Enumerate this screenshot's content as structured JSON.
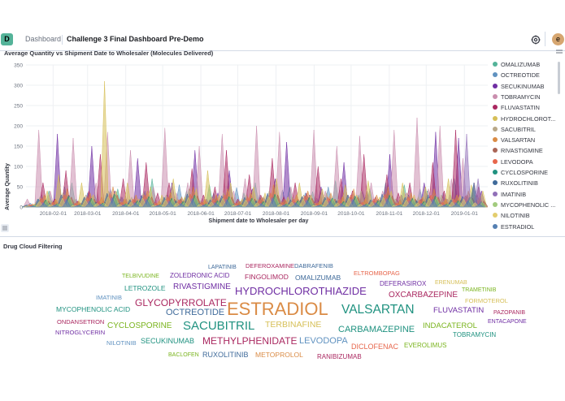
{
  "header": {
    "logo_letter": "D",
    "breadcrumb_root": "Dashboard",
    "breadcrumb_current": "Challenge 3 Final Dashboard Pre-Demo",
    "avatar_letter": "e"
  },
  "panel1": {
    "title": "Average Quantity vs Shipment Date to Wholesaler (Molecules Delivered)"
  },
  "panel2": {
    "title": "Drug Cloud Filtering"
  },
  "chart_data": {
    "type": "area",
    "title": "Average Quantity vs Shipment Date to Wholesaler (Molecules Delivered)",
    "xlabel": "Shipment date to Wholesaler per day",
    "ylabel": "Average Quantity",
    "ylim": [
      0,
      350
    ],
    "yticks": [
      0,
      50,
      100,
      150,
      200,
      250,
      300,
      350
    ],
    "xticks": [
      "2018-02-01",
      "2018-03-01",
      "2018-04-01",
      "2018-05-01",
      "2018-06-01",
      "2018-07-01",
      "2018-08-01",
      "2018-09-01",
      "2018-10-01",
      "2018-11-01",
      "2018-12-01",
      "2019-01-01"
    ],
    "x_range": [
      "2018-01-10",
      "2019-01-20"
    ],
    "grid": true,
    "legend_position": "right",
    "series": [
      {
        "name": "OMALIZUMAB",
        "color": "#54b399",
        "values": [
          5,
          20,
          40,
          10,
          60,
          15,
          30,
          8,
          45,
          20,
          10,
          70,
          25,
          12,
          40,
          18,
          55,
          22,
          9,
          35,
          60,
          15,
          28,
          50,
          12,
          38,
          20,
          65,
          14,
          30,
          45,
          10,
          25,
          55,
          18,
          40,
          12,
          30,
          22,
          50
        ]
      },
      {
        "name": "OCTREOTIDE",
        "color": "#6092c0",
        "values": [
          10,
          30,
          15,
          50,
          20,
          35,
          12,
          45,
          25,
          18,
          40,
          8,
          30,
          55,
          20,
          12,
          35,
          25,
          48,
          15,
          30,
          20,
          42,
          10,
          35,
          22,
          50,
          15,
          28,
          40,
          12,
          60,
          18,
          30,
          45,
          20,
          35,
          70,
          25,
          30
        ]
      },
      {
        "name": "SECUKINUMAB",
        "color": "#6f2ea3",
        "values": [
          2,
          8,
          180,
          30,
          10,
          150,
          15,
          40,
          20,
          120,
          25,
          10,
          60,
          15,
          140,
          20,
          35,
          90,
          15,
          45,
          25,
          70,
          160,
          20,
          30,
          50,
          15,
          110,
          25,
          40,
          20,
          130,
          30,
          15,
          60,
          185,
          20,
          170,
          25,
          40
        ]
      },
      {
        "name": "TOBRAMYCIN",
        "color": "#ca8eae",
        "values": [
          20,
          190,
          40,
          30,
          170,
          25,
          60,
          185,
          20,
          140,
          30,
          50,
          195,
          35,
          60,
          150,
          25,
          180,
          40,
          70,
          200,
          30,
          185,
          50,
          25,
          190,
          40,
          150,
          30,
          175,
          60,
          40,
          190,
          35,
          220,
          45,
          200,
          70,
          120,
          60
        ]
      },
      {
        "name": "FLUVASTATIN",
        "color": "#aa2860",
        "values": [
          5,
          60,
          20,
          90,
          15,
          40,
          130,
          25,
          70,
          20,
          110,
          35,
          60,
          20,
          95,
          30,
          50,
          140,
          20,
          80,
          30,
          120,
          25,
          60,
          35,
          100,
          20,
          70,
          40,
          130,
          25,
          80,
          35,
          60,
          20,
          110,
          40,
          190,
          30,
          50
        ]
      },
      {
        "name": "HYDROCHLOROTHIAZIDE",
        "color": "#d6bf57",
        "values": [
          10,
          40,
          80,
          20,
          60,
          30,
          310,
          40,
          60,
          20,
          50,
          30,
          70,
          25,
          45,
          90,
          30,
          60,
          20,
          50,
          35,
          70,
          25,
          60,
          30,
          45,
          20,
          55,
          30,
          65,
          25,
          40,
          60,
          30,
          50,
          25,
          70,
          30,
          55,
          40
        ]
      },
      {
        "name": "SACUBITRIL",
        "color": "#b9a888",
        "values": [
          5,
          25,
          15,
          35,
          20,
          30,
          10,
          40,
          15,
          25,
          35,
          10,
          30,
          20,
          45,
          15,
          25,
          35,
          10,
          30,
          20,
          40,
          15,
          25,
          30,
          10,
          35,
          20,
          25,
          40,
          15,
          30,
          20,
          35,
          25,
          15,
          30,
          20,
          25,
          30
        ]
      },
      {
        "name": "VALSARTAN",
        "color": "#da8b45",
        "values": [
          8,
          30,
          20,
          45,
          15,
          35,
          25,
          50,
          20,
          30,
          40,
          15,
          35,
          25,
          50,
          20,
          30,
          45,
          15,
          35,
          25,
          55,
          20,
          30,
          40,
          15,
          35,
          25,
          45,
          20,
          30,
          50,
          15,
          35,
          25,
          45,
          20,
          30,
          40,
          25
        ]
      },
      {
        "name": "RIVASTIGMINE",
        "color": "#aa6556",
        "values": [
          3,
          15,
          10,
          25,
          8,
          20,
          12,
          30,
          10,
          18,
          25,
          8,
          20,
          15,
          28,
          10,
          18,
          25,
          8,
          20,
          15,
          30,
          10,
          18,
          22,
          8,
          20,
          15,
          25,
          10,
          18,
          28,
          8,
          20,
          15,
          25,
          10,
          18,
          22,
          15
        ]
      },
      {
        "name": "LEVODOPA",
        "color": "#e7664c",
        "values": [
          6,
          22,
          12,
          30,
          10,
          25,
          15,
          35,
          12,
          20,
          30,
          10,
          25,
          18,
          32,
          12,
          20,
          30,
          10,
          25,
          18,
          35,
          12,
          20,
          28,
          10,
          25,
          18,
          30,
          12,
          20,
          32,
          10,
          25,
          18,
          30,
          12,
          20,
          28,
          18
        ]
      },
      {
        "name": "CYCLOSPORINE",
        "color": "#209280",
        "values": [
          4,
          18,
          8,
          28,
          6,
          22,
          10,
          32,
          8,
          16,
          26,
          6,
          22,
          14,
          30,
          8,
          16,
          26,
          6,
          22,
          14,
          32,
          8,
          16,
          24,
          6,
          22,
          14,
          28,
          8,
          16,
          30,
          6,
          22,
          14,
          28,
          8,
          16,
          24,
          14
        ]
      },
      {
        "name": "RUXOLITINIB",
        "color": "#3f6a9a",
        "values": [
          5,
          20,
          10,
          30,
          8,
          24,
          12,
          34,
          10,
          18,
          28,
          8,
          24,
          16,
          32,
          10,
          18,
          28,
          8,
          24,
          16,
          34,
          10,
          18,
          26,
          8,
          24,
          16,
          30,
          10,
          18,
          32,
          8,
          24,
          16,
          30,
          10,
          18,
          26,
          60
        ]
      },
      {
        "name": "IMATINIB",
        "color": "#9170b8",
        "values": [
          2,
          12,
          6,
          20,
          4,
          16,
          8,
          24,
          6,
          12,
          20,
          4,
          16,
          10,
          22,
          6,
          12,
          20,
          4,
          16,
          10,
          24,
          6,
          12,
          18,
          4,
          16,
          10,
          20,
          6,
          12,
          22,
          4,
          16,
          10,
          20,
          6,
          12,
          180,
          70
        ]
      },
      {
        "name": "MYCOPHENOLIC ACID",
        "color": "#a2cb7e",
        "values": [
          4,
          16,
          8,
          24,
          6,
          20,
          10,
          28,
          8,
          14,
          24,
          6,
          20,
          12,
          26,
          8,
          14,
          24,
          6,
          20,
          12,
          28,
          8,
          14,
          22,
          6,
          20,
          12,
          24,
          8,
          14,
          26,
          6,
          20,
          12,
          24,
          8,
          14,
          22,
          12
        ]
      },
      {
        "name": "NILOTINIB",
        "color": "#e3cd6e",
        "values": [
          3,
          14,
          7,
          22,
          5,
          18,
          9,
          26,
          7,
          13,
          22,
          5,
          18,
          11,
          24,
          7,
          13,
          22,
          5,
          18,
          11,
          26,
          7,
          13,
          20,
          5,
          18,
          11,
          22,
          7,
          13,
          24,
          5,
          18,
          11,
          22,
          7,
          13,
          20,
          11
        ]
      },
      {
        "name": "ESTRADIOL",
        "color": "#5580b2",
        "values": [
          2,
          10,
          5,
          18,
          4,
          14,
          7,
          22,
          5,
          10,
          18,
          4,
          14,
          8,
          20,
          5,
          10,
          18,
          4,
          14,
          8,
          22,
          5,
          10,
          16,
          4,
          14,
          8,
          18,
          5,
          10,
          20,
          4,
          14,
          8,
          18,
          5,
          10,
          16,
          8
        ]
      }
    ]
  },
  "legend": [
    {
      "label": "OMALIZUMAB",
      "color": "#54b399"
    },
    {
      "label": "OCTREOTIDE",
      "color": "#6092c0"
    },
    {
      "label": "SECUKINUMAB",
      "color": "#6f2ea3"
    },
    {
      "label": "TOBRAMYCIN",
      "color": "#ca8eae"
    },
    {
      "label": "FLUVASTATIN",
      "color": "#aa2860"
    },
    {
      "label": "HYDROCHLOROT...",
      "color": "#d6bf57"
    },
    {
      "label": "SACUBITRIL",
      "color": "#b9a888"
    },
    {
      "label": "VALSARTAN",
      "color": "#da8b45"
    },
    {
      "label": "RIVASTIGMINE",
      "color": "#aa6556"
    },
    {
      "label": "LEVODOPA",
      "color": "#e7664c"
    },
    {
      "label": "CYCLOSPORINE",
      "color": "#209280"
    },
    {
      "label": "RUXOLITINIB",
      "color": "#3f6a9a"
    },
    {
      "label": "IMATINIB",
      "color": "#9170b8"
    },
    {
      "label": "MYCOPHENOLIC ...",
      "color": "#a2cb7e"
    },
    {
      "label": "NILOTINIB",
      "color": "#e3cd6e"
    },
    {
      "label": "ESTRADIOL",
      "color": "#5580b2"
    }
  ],
  "word_cloud": [
    {
      "text": "TELBIVUDINE",
      "color": "#7ab41e"
    },
    {
      "text": "ZOLEDRONIC ACID",
      "color": "#6f2ea3"
    },
    {
      "text": "LAPATINIB",
      "color": "#3f6a9a"
    },
    {
      "text": "DEFEROXAMINE",
      "color": "#aa2860"
    },
    {
      "text": "DABRAFENIB",
      "color": "#3f6a9a"
    },
    {
      "text": "ELTROMBOPAG",
      "color": "#e7664c"
    },
    {
      "text": "FINGOLIMOD",
      "color": "#aa2860"
    },
    {
      "text": "OMALIZUMAB",
      "color": "#3f6a9a"
    },
    {
      "text": "DEFERASIROX",
      "color": "#6f2ea3"
    },
    {
      "text": "ERENUMAB",
      "color": "#d6bf57"
    },
    {
      "text": "LETROZOLE",
      "color": "#209280"
    },
    {
      "text": "RIVASTIGMINE",
      "color": "#6f2ea3"
    },
    {
      "text": "TRAMETINIB",
      "color": "#7ab41e"
    },
    {
      "text": "IMATINIB",
      "color": "#6092c0"
    },
    {
      "text": "HYDROCHLOROTHIAZIDE",
      "color": "#6f2ea3"
    },
    {
      "text": "OXCARBAZEPINE",
      "color": "#aa2860"
    },
    {
      "text": "FORMOTEROL",
      "color": "#d6bf57"
    },
    {
      "text": "GLYCOPYRROLATE",
      "color": "#aa2860"
    },
    {
      "text": "MYCOPHENOLIC ACID",
      "color": "#209280"
    },
    {
      "text": "ESTRADIOL",
      "color": "#da8b45"
    },
    {
      "text": "VALSARTAN",
      "color": "#209280"
    },
    {
      "text": "FLUVASTATIN",
      "color": "#6f2ea3"
    },
    {
      "text": "PAZOPANIB",
      "color": "#aa2860"
    },
    {
      "text": "OCTREOTIDE",
      "color": "#3f6a9a"
    },
    {
      "text": "ENTACAPONE",
      "color": "#6f2ea3"
    },
    {
      "text": "ONDANSETRON",
      "color": "#aa2860"
    },
    {
      "text": "CYCLOSPORINE",
      "color": "#7ab41e"
    },
    {
      "text": "SACUBITRIL",
      "color": "#209280"
    },
    {
      "text": "TERBINAFINE",
      "color": "#d6bf57"
    },
    {
      "text": "CARBAMAZEPINE",
      "color": "#209280"
    },
    {
      "text": "INDACATEROL",
      "color": "#7ab41e"
    },
    {
      "text": "NITROGLYCERIN",
      "color": "#6f2ea3"
    },
    {
      "text": "TOBRAMYCIN",
      "color": "#209280"
    },
    {
      "text": "NILOTINIB",
      "color": "#6092c0"
    },
    {
      "text": "SECUKINUMAB",
      "color": "#209280"
    },
    {
      "text": "METHYLPHENIDATE",
      "color": "#aa2860"
    },
    {
      "text": "LEVODOPA",
      "color": "#6092c0"
    },
    {
      "text": "DICLOFENAC",
      "color": "#e7664c"
    },
    {
      "text": "EVEROLIMUS",
      "color": "#7ab41e"
    },
    {
      "text": "BACLOFEN",
      "color": "#7ab41e"
    },
    {
      "text": "RUXOLITINIB",
      "color": "#3f6a9a"
    },
    {
      "text": "METOPROLOL",
      "color": "#da8b45"
    },
    {
      "text": "RANIBIZUMAB",
      "color": "#aa2860"
    }
  ]
}
